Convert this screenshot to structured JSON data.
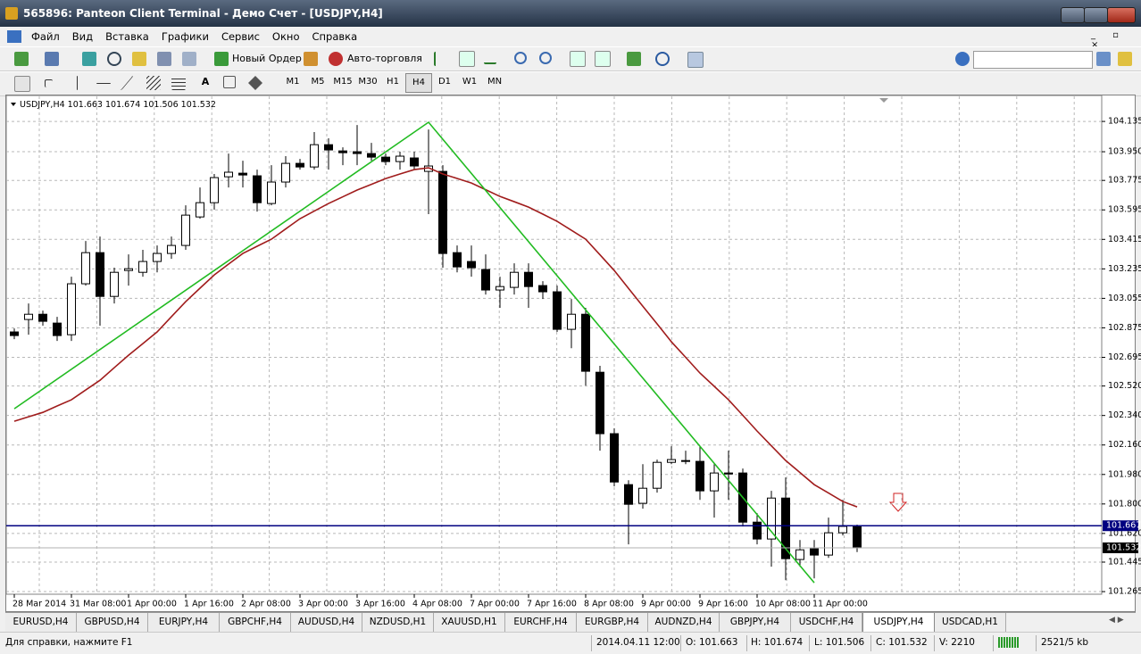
{
  "window": {
    "title": "565896: Panteon Client Terminal - Демо Счет - [USDJPY,H4]"
  },
  "menu": [
    "Файл",
    "Вид",
    "Вставка",
    "Графики",
    "Сервис",
    "Окно",
    "Справка"
  ],
  "toolbar": {
    "new_order": "Новый Ордер",
    "auto_trading": "Авто-торговля"
  },
  "timeframes": [
    "M1",
    "M5",
    "M15",
    "M30",
    "H1",
    "H4",
    "D1",
    "W1",
    "MN"
  ],
  "tabs": [
    "EURUSD,H4",
    "GBPUSD,H4",
    "EURJPY,H4",
    "GBPCHF,H4",
    "AUDUSD,H4",
    "NZDUSD,H1",
    "XAUUSD,H1",
    "EURCHF,H4",
    "EURGBP,H4",
    "AUDNZD,H4",
    "GBPJPY,H4",
    "USDCHF,H4",
    "USDJPY,H4",
    "USDCAD,H1"
  ],
  "status_bar": {
    "help": "Для справки, нажмите F1",
    "time": "2014.04.11 12:00",
    "open": "O: 101.663",
    "high": "H: 101.674",
    "low": "L: 101.506",
    "close": "C: 101.532",
    "volume": "V: 2210",
    "traffic": "2521/5 kb"
  },
  "chart_data": {
    "type": "candlestick",
    "symbol": "USDJPY,H4",
    "header_values": [
      101.663,
      101.674,
      101.506,
      101.532
    ],
    "categories": [
      "28 Mar 2014",
      null,
      null,
      null,
      "31 Mar 08:00",
      null,
      null,
      null,
      "1 Apr 00:00",
      null,
      null,
      null,
      "1 Apr 16:00",
      null,
      null,
      null,
      "2 Apr 08:00",
      null,
      null,
      null,
      "3 Apr 00:00",
      null,
      null,
      null,
      "3 Apr 16:00",
      null,
      null,
      null,
      "4 Apr 08:00",
      null,
      null,
      null,
      "7 Apr 00:00",
      null,
      null,
      null,
      "7 Apr 16:00",
      null,
      null,
      null,
      "8 Apr 08:00",
      null,
      null,
      null,
      "9 Apr 00:00",
      null,
      null,
      null,
      "9 Apr 16:00",
      null,
      null,
      null,
      "10 Apr 08:00",
      null,
      null,
      null,
      "11 Apr 00:00",
      null,
      null,
      null
    ],
    "open": [
      102.85,
      102.926,
      102.958,
      102.904,
      102.833,
      103.144,
      103.334,
      103.067,
      103.225,
      103.214,
      103.28,
      103.329,
      103.378,
      103.552,
      103.639,
      103.797,
      103.819,
      103.803,
      103.634,
      103.765,
      103.879,
      103.857,
      103.993,
      103.955,
      103.95,
      103.939,
      103.917,
      103.89,
      103.912,
      103.83,
      103.83,
      103.334,
      103.28,
      103.231,
      103.106,
      103.122,
      103.214,
      103.133,
      103.095,
      102.866,
      102.958,
      102.604,
      102.229,
      101.918,
      101.804,
      101.896,
      102.054,
      102.06,
      102.06,
      101.88,
      101.989,
      101.989,
      101.689,
      101.586,
      101.836,
      101.461,
      101.526,
      101.488,
      101.624,
      101.663
    ],
    "high": [
      102.871,
      103.024,
      102.98,
      102.942,
      103.187,
      103.405,
      103.432,
      103.242,
      103.323,
      103.351,
      103.378,
      103.432,
      103.623,
      103.732,
      103.814,
      103.939,
      103.895,
      103.841,
      103.868,
      103.923,
      103.906,
      104.07,
      104.032,
      103.977,
      104.113,
      104.004,
      103.939,
      103.95,
      103.95,
      104.086,
      103.868,
      103.378,
      103.378,
      103.323,
      103.187,
      103.269,
      103.269,
      103.16,
      103.133,
      103.051,
      102.997,
      102.643,
      102.261,
      101.945,
      102.043,
      102.071,
      102.152,
      102.125,
      102.152,
      102.043,
      102.125,
      102.016,
      101.744,
      101.88,
      101.962,
      101.58,
      101.58,
      101.717,
      101.825,
      101.674
    ],
    "low": [
      102.806,
      102.833,
      102.888,
      102.795,
      102.795,
      103.133,
      102.888,
      103.024,
      103.133,
      103.187,
      103.214,
      103.296,
      103.351,
      103.541,
      103.596,
      103.732,
      103.732,
      103.585,
      103.623,
      103.732,
      103.841,
      103.841,
      103.841,
      103.868,
      103.868,
      103.895,
      103.868,
      103.841,
      103.841,
      103.569,
      103.242,
      103.214,
      103.187,
      103.078,
      102.997,
      103.078,
      102.997,
      103.051,
      102.85,
      102.751,
      102.523,
      102.125,
      101.907,
      101.553,
      101.771,
      101.869,
      102.043,
      102.043,
      101.825,
      101.717,
      101.825,
      101.662,
      101.553,
      101.417,
      101.335,
      101.417,
      101.346,
      101.471,
      101.608,
      101.506
    ],
    "close": [
      102.828,
      102.958,
      102.915,
      102.828,
      103.144,
      103.334,
      103.067,
      103.214,
      103.236,
      103.28,
      103.329,
      103.378,
      103.563,
      103.639,
      103.792,
      103.825,
      103.808,
      103.639,
      103.765,
      103.879,
      103.857,
      103.993,
      103.961,
      103.944,
      103.939,
      103.917,
      103.89,
      103.923,
      103.863,
      103.863,
      103.329,
      103.247,
      103.242,
      103.106,
      103.127,
      103.214,
      103.127,
      103.095,
      102.866,
      102.958,
      102.61,
      102.229,
      101.934,
      101.798,
      101.896,
      102.054,
      102.071,
      102.065,
      101.88,
      101.989,
      101.983,
      101.689,
      101.586,
      101.836,
      101.466,
      101.52,
      101.488,
      101.624,
      101.663,
      101.532
    ],
    "up_color": "#ffffff",
    "down_color": "#000000",
    "moving_average": {
      "color": "#a01c1c",
      "values": [
        102.305,
        102.332,
        102.359,
        102.398,
        102.436,
        102.496,
        102.555,
        102.632,
        102.708,
        102.779,
        102.85,
        102.943,
        103.035,
        103.117,
        103.198,
        103.264,
        103.329,
        103.373,
        103.416,
        103.479,
        103.541,
        103.588,
        103.634,
        103.675,
        103.716,
        103.751,
        103.786,
        103.814,
        103.841,
        103.852,
        103.814,
        103.787,
        103.759,
        103.718,
        103.677,
        103.645,
        103.612,
        103.569,
        103.525,
        103.471,
        103.416,
        103.321,
        103.225,
        103.116,
        103.007,
        102.899,
        102.79,
        102.695,
        102.599,
        102.518,
        102.436,
        102.341,
        102.245,
        102.155,
        102.065,
        101.992,
        101.918,
        101.867,
        101.815,
        101.782
      ]
    },
    "trendlines": [
      {
        "color": "#22bb22",
        "x": [
          0,
          29,
          56
        ],
        "values": [
          102.381,
          104.13,
          101.319
        ]
      }
    ],
    "hlines": [
      {
        "value": 101.667,
        "color": "#000080",
        "label_color": "#000080"
      },
      {
        "value": 101.532,
        "color": "#b0b0b0",
        "label_color": "#000000"
      }
    ],
    "ylim": [
      101.249,
      104.288
    ],
    "yticks": [
      104.135,
      {
        "value": 103.95,
        "label": "103.950"
      },
      103.775,
      103.595,
      103.415,
      103.235,
      103.055,
      102.875,
      102.695,
      {
        "value": 102.52,
        "label": "102.520"
      },
      {
        "value": 102.34,
        "label": "102.340"
      },
      {
        "value": 102.16,
        "label": "102.160"
      },
      {
        "value": 101.98,
        "label": "101.980"
      },
      {
        "value": 101.8,
        "label": "101.800"
      },
      {
        "value": 101.62,
        "label": "101.620"
      },
      101.445,
      101.265
    ],
    "grid": true
  }
}
